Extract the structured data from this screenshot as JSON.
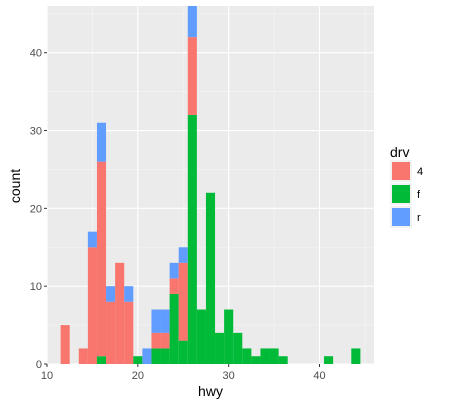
{
  "chart_data": {
    "type": "bar",
    "subtype": "stacked-histogram",
    "title": "",
    "xlabel": "hwy",
    "ylabel": "count",
    "xlim": [
      10,
      46
    ],
    "ylim": [
      0,
      46
    ],
    "x_ticks": [
      10,
      20,
      30,
      40
    ],
    "y_ticks": [
      0,
      10,
      20,
      30,
      40
    ],
    "grid": true,
    "legend_position": "right",
    "legend": {
      "title": "drv",
      "entries": [
        {
          "label": "4",
          "color": "#F8766D"
        },
        {
          "label": "f",
          "color": "#00BA38"
        },
        {
          "label": "r",
          "color": "#619CFF"
        }
      ]
    },
    "stack_order": [
      "f",
      "4",
      "r"
    ],
    "bin_width": 1,
    "bins": [
      {
        "x": 12,
        "4": 5,
        "f": 0,
        "r": 0
      },
      {
        "x": 14,
        "4": 2,
        "f": 0,
        "r": 0
      },
      {
        "x": 15,
        "4": 15,
        "f": 0,
        "r": 2
      },
      {
        "x": 16,
        "4": 25,
        "f": 1,
        "r": 5
      },
      {
        "x": 17,
        "4": 8,
        "f": 0,
        "r": 2
      },
      {
        "x": 18,
        "4": 13,
        "f": 0,
        "r": 0
      },
      {
        "x": 19,
        "4": 8,
        "f": 0,
        "r": 2
      },
      {
        "x": 20,
        "4": 0,
        "f": 1,
        "r": 0
      },
      {
        "x": 21,
        "4": 0,
        "f": 0,
        "r": 2
      },
      {
        "x": 22,
        "4": 2,
        "f": 2,
        "r": 3
      },
      {
        "x": 23,
        "4": 2,
        "f": 2,
        "r": 3
      },
      {
        "x": 24,
        "4": 2,
        "f": 9,
        "r": 2
      },
      {
        "x": 25,
        "4": 10,
        "f": 3,
        "r": 2
      },
      {
        "x": 26,
        "4": 10,
        "f": 32,
        "r": 4
      },
      {
        "x": 27,
        "4": 0,
        "f": 7,
        "r": 0
      },
      {
        "x": 28,
        "4": 0,
        "f": 22,
        "r": 0
      },
      {
        "x": 29,
        "4": 0,
        "f": 4,
        "r": 0
      },
      {
        "x": 30,
        "4": 0,
        "f": 7,
        "r": 0
      },
      {
        "x": 31,
        "4": 0,
        "f": 4,
        "r": 0
      },
      {
        "x": 32,
        "4": 0,
        "f": 2,
        "r": 0
      },
      {
        "x": 33,
        "4": 0,
        "f": 1,
        "r": 0
      },
      {
        "x": 34,
        "4": 0,
        "f": 2,
        "r": 0
      },
      {
        "x": 35,
        "4": 0,
        "f": 2,
        "r": 0
      },
      {
        "x": 36,
        "4": 0,
        "f": 1,
        "r": 0
      },
      {
        "x": 41,
        "4": 0,
        "f": 1,
        "r": 0
      },
      {
        "x": 44,
        "4": 0,
        "f": 2,
        "r": 0
      }
    ]
  }
}
